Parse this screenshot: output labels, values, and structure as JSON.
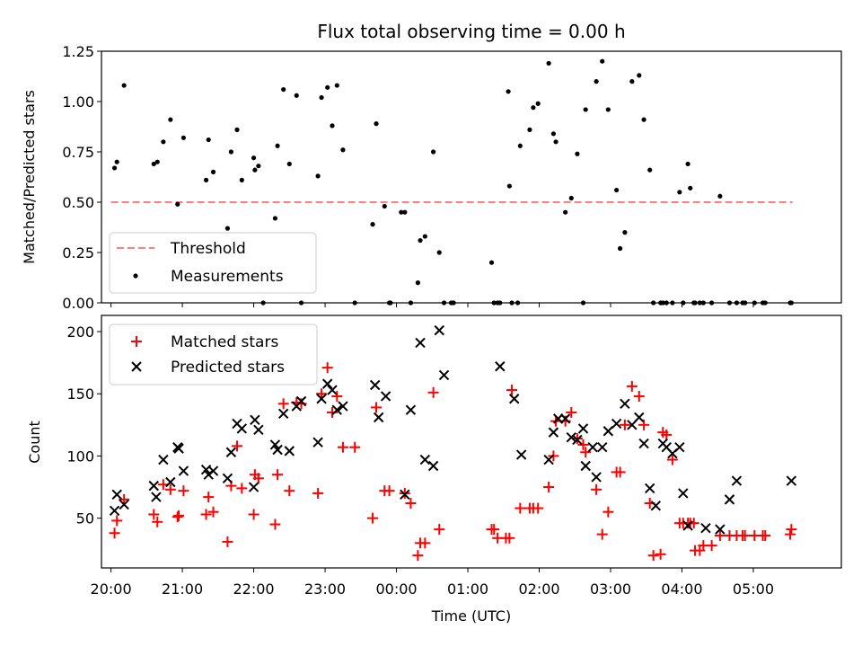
{
  "chart_data": [
    {
      "type": "scatter",
      "title": "Flux total observing time = 0.00 h",
      "xlabel": "",
      "ylabel": "Matched/Predicted stars",
      "ylim": [
        0,
        1.25
      ],
      "yticks": [
        "0.00",
        "0.25",
        "0.50",
        "0.75",
        "1.00",
        "1.25"
      ],
      "grid": false,
      "legend_position": "lower-left",
      "threshold": {
        "name": "Threshold",
        "y": 0.5,
        "x_range": [
          "20:00",
          "05:33"
        ],
        "color": "#ff7f7f",
        "style": "dashed"
      },
      "series": [
        {
          "name": "Measurements",
          "marker": "dot",
          "color": "#000000",
          "x": [
            "20:03",
            "20:05",
            "20:11",
            "20:36",
            "20:39",
            "20:44",
            "20:50",
            "20:56",
            "21:01",
            "21:20",
            "21:22",
            "21:26",
            "21:38",
            "21:41",
            "21:46",
            "21:50",
            "22:00",
            "22:01",
            "22:04",
            "22:08",
            "22:18",
            "22:20",
            "22:25",
            "22:30",
            "22:36",
            "22:40",
            "22:54",
            "22:57",
            "23:02",
            "23:06",
            "23:10",
            "23:15",
            "23:25",
            "23:40",
            "23:43",
            "23:50",
            "23:54",
            "23:55",
            "00:04",
            "00:07",
            "00:12",
            "00:18",
            "00:20",
            "00:24",
            "00:31",
            "00:36",
            "00:40",
            "00:46",
            "00:48",
            "01:20",
            "01:22",
            "01:25",
            "01:27",
            "01:34",
            "01:35",
            "01:37",
            "01:42",
            "01:44",
            "01:52",
            "01:55",
            "01:59",
            "02:08",
            "02:12",
            "02:14",
            "02:22",
            "02:27",
            "02:32",
            "02:37",
            "02:39",
            "02:48",
            "02:53",
            "02:58",
            "03:05",
            "03:08",
            "03:12",
            "03:18",
            "03:24",
            "03:28",
            "03:33",
            "03:36",
            "03:42",
            "03:44",
            "03:47",
            "03:52",
            "03:58",
            "04:01",
            "04:05",
            "04:07",
            "04:10",
            "04:11",
            "04:15",
            "04:18",
            "04:25",
            "04:32",
            "04:40",
            "04:46",
            "04:51",
            "04:53",
            "05:01",
            "05:08",
            "05:10",
            "05:31",
            "05:32"
          ],
          "y": [
            0.67,
            0.7,
            1.08,
            0.69,
            0.7,
            0.8,
            0.91,
            0.49,
            0.82,
            0.61,
            0.81,
            0.65,
            0.37,
            0.75,
            0.86,
            0.61,
            0.72,
            0.66,
            0.68,
            0.0,
            0.42,
            0.78,
            1.06,
            0.69,
            1.03,
            0.0,
            0.63,
            1.02,
            1.07,
            0.88,
            1.08,
            0.76,
            0.0,
            0.39,
            0.89,
            0.48,
            0.0,
            0.0,
            0.45,
            0.45,
            0.0,
            0.1,
            0.31,
            0.33,
            0.75,
            0.25,
            0.0,
            0.0,
            0.0,
            0.2,
            0.0,
            0.0,
            0.0,
            1.05,
            0.58,
            0.0,
            0.0,
            0.78,
            0.86,
            0.97,
            0.99,
            1.19,
            0.84,
            0.8,
            0.45,
            0.52,
            0.74,
            0.0,
            0.96,
            1.1,
            1.2,
            0.96,
            0.56,
            0.27,
            0.35,
            1.1,
            1.13,
            0.91,
            0.66,
            0.0,
            0.0,
            0.0,
            0.0,
            0.0,
            0.55,
            0.0,
            0.69,
            0.57,
            0.0,
            0.0,
            0.0,
            0.0,
            0.0,
            0.53,
            0.0,
            0.0,
            0.0,
            0.0,
            0.0,
            0.0,
            0.0,
            0.0,
            0.0
          ]
        }
      ]
    },
    {
      "type": "scatter",
      "title": "",
      "xlabel": "Time (UTC)",
      "ylabel": "Count",
      "xlim": [
        "19:52",
        "06:14"
      ],
      "ylim": [
        10,
        213
      ],
      "xticks": [
        "20:00",
        "21:00",
        "22:00",
        "23:00",
        "00:00",
        "01:00",
        "02:00",
        "03:00",
        "04:00",
        "05:00"
      ],
      "yticks": [
        "50",
        "100",
        "150",
        "200"
      ],
      "grid": false,
      "legend_position": "upper-left",
      "series": [
        {
          "name": "Matched stars",
          "marker": "plus",
          "color": "#ff0000",
          "x": [
            "20:03",
            "20:05",
            "20:11",
            "20:36",
            "20:39",
            "20:44",
            "20:50",
            "20:56",
            "20:57",
            "21:01",
            "21:20",
            "21:22",
            "21:26",
            "21:38",
            "21:41",
            "21:46",
            "21:50",
            "22:00",
            "22:01",
            "22:04",
            "22:18",
            "22:20",
            "22:25",
            "22:30",
            "22:36",
            "22:40",
            "22:54",
            "22:57",
            "23:02",
            "23:06",
            "23:10",
            "23:15",
            "23:25",
            "23:40",
            "23:43",
            "23:50",
            "23:54",
            "00:07",
            "00:12",
            "00:18",
            "00:20",
            "00:24",
            "00:31",
            "00:36",
            "01:20",
            "01:22",
            "01:25",
            "01:32",
            "01:35",
            "01:37",
            "01:44",
            "01:52",
            "01:55",
            "01:59",
            "02:08",
            "02:12",
            "02:14",
            "02:22",
            "02:27",
            "02:32",
            "02:37",
            "02:39",
            "02:48",
            "02:53",
            "02:58",
            "03:05",
            "03:08",
            "03:12",
            "03:18",
            "03:24",
            "03:28",
            "03:33",
            "03:36",
            "03:42",
            "03:44",
            "03:47",
            "03:52",
            "03:58",
            "04:01",
            "04:05",
            "04:07",
            "04:10",
            "04:11",
            "04:15",
            "04:18",
            "04:25",
            "04:32",
            "04:40",
            "04:46",
            "04:51",
            "04:53",
            "05:01",
            "05:08",
            "05:10",
            "05:31",
            "05:32"
          ],
          "y": [
            38,
            48,
            65,
            53,
            47,
            77,
            73,
            51,
            52,
            72,
            53,
            67,
            55,
            31,
            76,
            108,
            74,
            53,
            85,
            82,
            45,
            85,
            142,
            72,
            143,
            142,
            70,
            150,
            171,
            135,
            148,
            107,
            107,
            50,
            139,
            72,
            72,
            70,
            62,
            20,
            30,
            30,
            151,
            41,
            41,
            41,
            34,
            34,
            34,
            153,
            58,
            58,
            58,
            58,
            75,
            100,
            128,
            128,
            135,
            114,
            109,
            103,
            73,
            37,
            55,
            87,
            87,
            125,
            156,
            148,
            125,
            62,
            20,
            21,
            119,
            117,
            97,
            46,
            46,
            46,
            46,
            46,
            24,
            24,
            28,
            28,
            36,
            36,
            36,
            36,
            36,
            36,
            36,
            36,
            37,
            41
          ]
        },
        {
          "name": "Predicted stars",
          "marker": "x",
          "color": "#000000",
          "x": [
            "20:03",
            "20:05",
            "20:11",
            "20:36",
            "20:38",
            "20:44",
            "20:50",
            "20:56",
            "20:57",
            "21:01",
            "21:20",
            "21:22",
            "21:26",
            "21:38",
            "21:41",
            "21:46",
            "21:50",
            "22:00",
            "22:01",
            "22:04",
            "22:18",
            "22:20",
            "22:25",
            "22:30",
            "22:36",
            "22:40",
            "22:54",
            "22:57",
            "23:02",
            "23:06",
            "23:10",
            "23:15",
            "23:42",
            "23:45",
            "23:51",
            "00:07",
            "00:12",
            "00:20",
            "00:24",
            "00:31",
            "00:36",
            "00:40",
            "01:27",
            "01:39",
            "01:45",
            "02:08",
            "02:12",
            "02:16",
            "02:22",
            "02:27",
            "02:32",
            "02:37",
            "02:39",
            "02:45",
            "02:48",
            "02:53",
            "02:58",
            "03:05",
            "03:12",
            "03:18",
            "03:24",
            "03:28",
            "03:33",
            "03:38",
            "03:44",
            "03:47",
            "03:52",
            "03:58",
            "04:01",
            "04:05",
            "04:20",
            "04:32",
            "04:40",
            "04:46",
            "05:32"
          ],
          "y": [
            56,
            69,
            61,
            76,
            67,
            97,
            79,
            107,
            106,
            88,
            89,
            85,
            88,
            82,
            103,
            126,
            122,
            75,
            129,
            121,
            109,
            105,
            134,
            104,
            140,
            144,
            111,
            146,
            158,
            153,
            137,
            140,
            157,
            131,
            148,
            69,
            137,
            191,
            97,
            92,
            201,
            165,
            172,
            146,
            101,
            97,
            119,
            130,
            130,
            115,
            113,
            122,
            92,
            107,
            83,
            107,
            120,
            126,
            142,
            125,
            131,
            110,
            74,
            60,
            110,
            107,
            102,
            107,
            70,
            44,
            42,
            41,
            65,
            80,
            80
          ]
        }
      ]
    }
  ]
}
